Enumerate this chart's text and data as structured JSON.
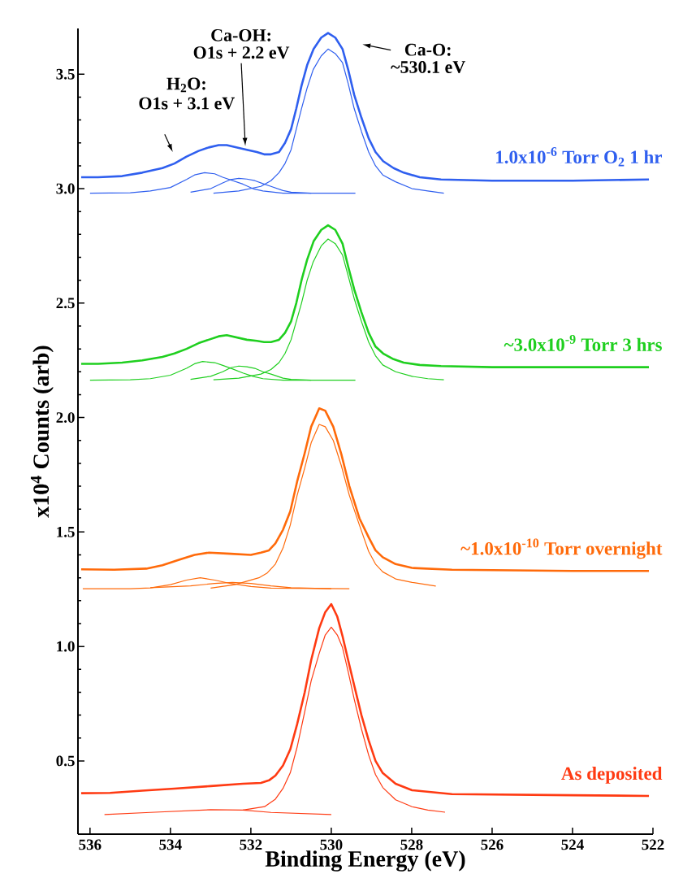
{
  "chart_data": {
    "type": "line",
    "xlabel": "Binding Energy (eV)",
    "ylabel": "x10$^{4}$ Counts (arb)",
    "xlim": [
      536.3,
      522
    ],
    "ylim": [
      0.18,
      3.7
    ],
    "xticks": [
      536,
      534,
      532,
      530,
      528,
      526,
      524,
      522
    ],
    "yticks": [
      0.5,
      {
        "value": 1,
        "label": "1.0"
      },
      1.5,
      {
        "value": 2,
        "label": "2.0"
      },
      2.5,
      {
        "value": 3,
        "label": "3.0"
      },
      3.5
    ],
    "annotations": [
      "H$_{2}$O:",
      "O1s + 3.1 eV",
      "Ca-OH:",
      "O1s + 2.2 eV",
      "Ca-O:",
      "~530.1 eV"
    ],
    "series": [
      {
        "name": "1.0x10$^{-6}$ Torr O$_{2}$ 1 hr",
        "color": "#2f5fef",
        "x": [
          536.22,
          535.8,
          535.2,
          534.7,
          534.2,
          533.9,
          533.6,
          533.3,
          533.05,
          532.8,
          532.6,
          532.35,
          532.1,
          531.85,
          531.67,
          531.5,
          531.3,
          531.15,
          531.0,
          530.87,
          530.74,
          530.6,
          530.44,
          530.25,
          530.08,
          529.9,
          529.72,
          529.58,
          529.43,
          529.25,
          529.07,
          528.9,
          528.71,
          528.45,
          528.2,
          527.8,
          527.27,
          526,
          524,
          522.1
        ],
        "values": [
          3.05,
          3.05,
          3.055,
          3.07,
          3.09,
          3.11,
          3.14,
          3.165,
          3.18,
          3.19,
          3.19,
          3.18,
          3.17,
          3.16,
          3.15,
          3.15,
          3.16,
          3.2,
          3.26,
          3.35,
          3.45,
          3.54,
          3.61,
          3.66,
          3.68,
          3.66,
          3.61,
          3.52,
          3.41,
          3.31,
          3.22,
          3.16,
          3.12,
          3.09,
          3.07,
          3.05,
          3.04,
          3.035,
          3.035,
          3.04
        ]
      },
      {
        "color": "#2f5fef",
        "x": [
          532.93,
          532.3,
          531.75,
          531.5,
          531.3,
          531.15,
          531.0,
          530.87,
          530.74,
          530.6,
          530.45,
          530.25,
          530.08,
          529.9,
          529.72,
          529.58,
          529.43,
          529.25,
          529.07,
          528.9,
          528.72,
          528.4,
          527.99,
          527.6,
          527.2
        ],
        "values": [
          2.98,
          2.99,
          3.01,
          3.035,
          3.07,
          3.11,
          3.17,
          3.26,
          3.35,
          3.44,
          3.52,
          3.58,
          3.61,
          3.59,
          3.55,
          3.46,
          3.35,
          3.25,
          3.16,
          3.1,
          3.06,
          3.03,
          3.0,
          2.99,
          2.98
        ]
      },
      {
        "color": "#2f5fef",
        "x": [
          536.0,
          535.0,
          534.5,
          534.0,
          533.6,
          533.4,
          533.15,
          532.9,
          532.7,
          532.45,
          532.2,
          531.95,
          531.7,
          531.2,
          529.4
        ],
        "values": [
          2.98,
          2.982,
          2.99,
          3.005,
          3.04,
          3.06,
          3.07,
          3.065,
          3.05,
          3.035,
          3.02,
          3.0,
          2.99,
          2.98,
          2.98
        ]
      },
      {
        "color": "#2f5fef",
        "x": [
          533.5,
          533.0,
          532.7,
          532.5,
          532.3,
          532.1,
          531.9,
          531.7,
          531.5,
          531.2,
          531.0,
          530.5
        ],
        "values": [
          2.985,
          3.0,
          3.025,
          3.04,
          3.045,
          3.042,
          3.035,
          3.022,
          3.01,
          2.992,
          2.985,
          2.98
        ]
      },
      {
        "name": "~3.0x10$^{-9}$ Torr 3 hrs",
        "color": "#1fcf1f",
        "x": [
          536.22,
          535.8,
          535.2,
          534.7,
          534.2,
          533.9,
          533.6,
          533.3,
          533.05,
          532.8,
          532.6,
          532.35,
          532.1,
          531.85,
          531.67,
          531.5,
          531.3,
          531.15,
          531.0,
          530.87,
          530.74,
          530.6,
          530.44,
          530.25,
          530.08,
          529.9,
          529.72,
          529.58,
          529.43,
          529.25,
          529.07,
          528.9,
          528.71,
          528.45,
          528.2,
          527.8,
          527.27,
          526,
          524,
          522.1
        ],
        "values": [
          2.235,
          2.235,
          2.24,
          2.25,
          2.265,
          2.28,
          2.3,
          2.325,
          2.34,
          2.355,
          2.36,
          2.35,
          2.34,
          2.335,
          2.33,
          2.33,
          2.34,
          2.37,
          2.42,
          2.5,
          2.6,
          2.69,
          2.77,
          2.82,
          2.84,
          2.82,
          2.76,
          2.66,
          2.56,
          2.46,
          2.37,
          2.31,
          2.28,
          2.255,
          2.24,
          2.23,
          2.225,
          2.22,
          2.22,
          2.22
        ]
      },
      {
        "color": "#1fcf1f",
        "x": [
          532.93,
          532.3,
          531.75,
          531.5,
          531.3,
          531.15,
          531.0,
          530.87,
          530.74,
          530.6,
          530.45,
          530.25,
          530.08,
          529.9,
          529.72,
          529.58,
          529.43,
          529.25,
          529.07,
          528.9,
          528.72,
          528.4,
          527.99,
          527.6,
          527.2
        ],
        "values": [
          2.165,
          2.172,
          2.19,
          2.21,
          2.24,
          2.28,
          2.34,
          2.42,
          2.5,
          2.6,
          2.68,
          2.75,
          2.78,
          2.76,
          2.71,
          2.62,
          2.52,
          2.42,
          2.33,
          2.27,
          2.23,
          2.2,
          2.18,
          2.17,
          2.165
        ]
      },
      {
        "color": "#1fcf1f",
        "x": [
          536.0,
          535.0,
          534.5,
          534.0,
          533.6,
          533.4,
          533.2,
          532.9,
          532.7,
          532.45,
          532.2,
          531.95,
          531.7,
          531.2,
          529.4
        ],
        "values": [
          2.163,
          2.165,
          2.17,
          2.185,
          2.215,
          2.235,
          2.245,
          2.24,
          2.228,
          2.212,
          2.195,
          2.18,
          2.17,
          2.163,
          2.163
        ]
      },
      {
        "color": "#1fcf1f",
        "x": [
          533.5,
          533.0,
          532.7,
          532.5,
          532.3,
          532.1,
          531.9,
          531.7,
          531.5,
          531.2,
          531.0,
          530.5
        ],
        "values": [
          2.167,
          2.18,
          2.2,
          2.218,
          2.225,
          2.222,
          2.215,
          2.2,
          2.19,
          2.172,
          2.167,
          2.163
        ]
      },
      {
        "name": "~1.0x10$^{-10}$ Torr overnight",
        "color": "#ff6a0a",
        "x": [
          536.22,
          535.4,
          534.6,
          534.2,
          533.77,
          533.4,
          533.04,
          532.5,
          532.0,
          531.75,
          531.55,
          531.39,
          531.2,
          531.02,
          530.85,
          530.66,
          530.5,
          530.3,
          530.15,
          529.95,
          529.75,
          529.55,
          529.3,
          529.07,
          528.9,
          528.72,
          528.4,
          527.99,
          527,
          524,
          522.1
        ],
        "values": [
          1.337,
          1.335,
          1.34,
          1.355,
          1.38,
          1.4,
          1.41,
          1.405,
          1.4,
          1.41,
          1.42,
          1.45,
          1.51,
          1.59,
          1.72,
          1.845,
          1.96,
          2.04,
          2.03,
          1.96,
          1.84,
          1.7,
          1.56,
          1.477,
          1.42,
          1.39,
          1.36,
          1.343,
          1.335,
          1.33,
          1.33
        ]
      },
      {
        "color": "#ff6a0a",
        "x": [
          533.0,
          532.4,
          531.8,
          531.6,
          531.39,
          531.2,
          531.02,
          530.85,
          530.66,
          530.5,
          530.3,
          530.15,
          529.95,
          529.75,
          529.55,
          529.3,
          529.07,
          528.9,
          528.72,
          528.4,
          527.99,
          527.4
        ],
        "values": [
          1.255,
          1.27,
          1.3,
          1.32,
          1.36,
          1.43,
          1.53,
          1.66,
          1.78,
          1.89,
          1.97,
          1.96,
          1.9,
          1.79,
          1.66,
          1.53,
          1.415,
          1.36,
          1.326,
          1.295,
          1.28,
          1.264
        ]
      },
      {
        "color": "#ff6a0a",
        "x": [
          536.18,
          535.0,
          534.5,
          534.0,
          533.6,
          533.26,
          532.9,
          532.5,
          532.0,
          531.5,
          529.55
        ],
        "values": [
          1.252,
          1.252,
          1.256,
          1.27,
          1.29,
          1.3,
          1.29,
          1.275,
          1.262,
          1.255,
          1.252
        ]
      },
      {
        "color": "#ff6a0a",
        "x": [
          534.5,
          533.5,
          532.9,
          532.46,
          532.0,
          531.5,
          531.0,
          530.0
        ],
        "values": [
          1.257,
          1.265,
          1.275,
          1.28,
          1.275,
          1.265,
          1.257,
          1.252
        ]
      },
      {
        "name": "As deposited",
        "color": "#ff3a12",
        "x": [
          536.22,
          535.5,
          534.7,
          533.9,
          533.0,
          532.2,
          531.75,
          531.55,
          531.39,
          531.2,
          531.02,
          530.85,
          530.66,
          530.5,
          530.3,
          530.15,
          530.0,
          529.85,
          529.72,
          529.58,
          529.43,
          529.25,
          529.07,
          528.9,
          528.72,
          528.4,
          527.99,
          527,
          524,
          522.1
        ],
        "values": [
          0.359,
          0.36,
          0.37,
          0.379,
          0.39,
          0.4,
          0.404,
          0.415,
          0.436,
          0.48,
          0.55,
          0.66,
          0.8,
          0.94,
          1.08,
          1.15,
          1.185,
          1.13,
          1.045,
          0.94,
          0.83,
          0.7,
          0.59,
          0.5,
          0.447,
          0.4,
          0.372,
          0.355,
          0.35,
          0.347
        ]
      },
      {
        "color": "#ff3a12",
        "x": [
          535.64,
          534.5,
          533.0,
          532.2,
          531.5,
          530.0
        ],
        "values": [
          0.266,
          0.275,
          0.287,
          0.285,
          0.275,
          0.266
        ]
      },
      {
        "color": "#ff3a12",
        "x": [
          532.2,
          531.66,
          531.39,
          531.2,
          531.02,
          530.85,
          530.66,
          530.5,
          530.3,
          530.15,
          530.0,
          529.85,
          529.72,
          529.58,
          529.43,
          529.25,
          529.07,
          528.9,
          528.72,
          528.4,
          527.99,
          527.6,
          527.17
        ],
        "values": [
          0.285,
          0.3,
          0.333,
          0.38,
          0.448,
          0.56,
          0.715,
          0.85,
          0.97,
          1.05,
          1.084,
          1.05,
          0.995,
          0.89,
          0.77,
          0.64,
          0.525,
          0.44,
          0.384,
          0.33,
          0.3,
          0.285,
          0.276
        ]
      }
    ]
  }
}
